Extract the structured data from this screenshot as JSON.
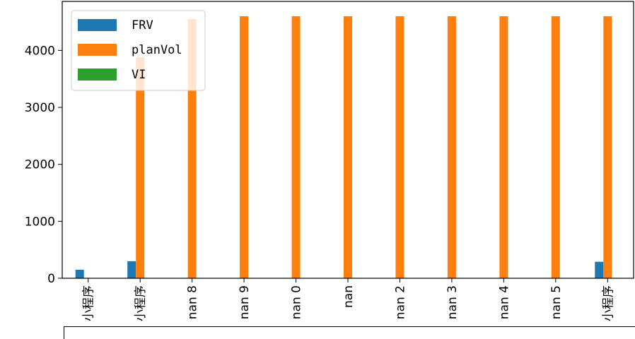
{
  "chart_data": {
    "type": "bar",
    "categories": [
      "小程序",
      "小程序",
      "nan",
      "nan",
      "nan",
      "nan",
      "nan",
      "nan",
      "nan",
      "nan",
      "小程序"
    ],
    "x_tick_fragments": [
      "",
      "",
      "8",
      "9",
      "0",
      "",
      "2",
      "3",
      "4",
      "5",
      ""
    ],
    "series": [
      {
        "name": "FRV",
        "color": "#1f77b4",
        "values": [
          150,
          300,
          null,
          null,
          null,
          null,
          null,
          null,
          null,
          null,
          290
        ]
      },
      {
        "name": "planVol",
        "color": "#ff7f0e",
        "values": [
          null,
          3880,
          4550,
          4600,
          4600,
          4600,
          4600,
          4600,
          4600,
          4600,
          4600
        ]
      },
      {
        "name": "VI",
        "color": "#2ca02c",
        "values": [
          null,
          null,
          null,
          null,
          null,
          null,
          null,
          null,
          null,
          null,
          null
        ]
      }
    ],
    "yticks": [
      0,
      1000,
      2000,
      3000,
      4000
    ],
    "ylim": [
      0,
      4860
    ],
    "title": "",
    "xlabel": "",
    "ylabel": "",
    "legend_position": "top-left",
    "grid": false
  }
}
